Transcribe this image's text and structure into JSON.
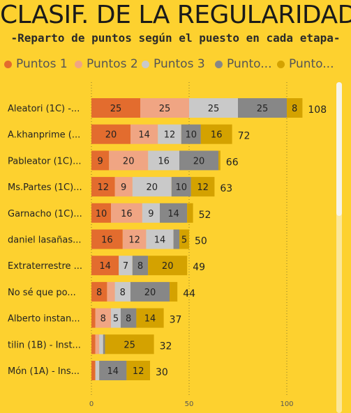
{
  "title": "CLASIF. DE LA REGULARIDAD",
  "subtitle": "-Reparto de puntos según el puesto en cada etapa-",
  "colors": {
    "background": "#fdd12f",
    "gridline": "#8a7a2a"
  },
  "chart_data": {
    "type": "bar",
    "orientation": "horizontal",
    "stacked": true,
    "xlim": [
      0,
      110
    ],
    "x_ticks": [
      0,
      50,
      100
    ],
    "grid": "vertical dotted at 0, 50, 100",
    "legend_position": "top",
    "categories": [
      "Aleatori (1C) -...",
      "A.khanprime (...",
      "Pableator (1C)...",
      "Ms.Partes (1C)...",
      "Garnacho (1C)...",
      "daniel lasañas...",
      "Extraterrestre ...",
      "No sé que po...",
      "Alberto instan...",
      "tilin (1B) - Inst...",
      "Món (1A) - Ins..."
    ],
    "series": [
      {
        "name": "Puntos 1",
        "color": "#e36c2e",
        "values": [
          25,
          20,
          9,
          12,
          10,
          16,
          14,
          8,
          2,
          2,
          2
        ]
      },
      {
        "name": "Puntos 2",
        "color": "#f0a583",
        "values": [
          25,
          14,
          20,
          9,
          16,
          12,
          0,
          4,
          8,
          2,
          0
        ]
      },
      {
        "name": "Puntos 3",
        "color": "#c9c9c9",
        "values": [
          25,
          12,
          16,
          20,
          9,
          14,
          7,
          8,
          5,
          2,
          2
        ]
      },
      {
        "name": "Punto...",
        "color": "#878787",
        "values": [
          25,
          10,
          20,
          10,
          14,
          3,
          8,
          20,
          8,
          1,
          14
        ]
      },
      {
        "name": "Punto...",
        "color": "#d4a200",
        "values": [
          8,
          16,
          1,
          12,
          3,
          5,
          20,
          4,
          14,
          25,
          12
        ]
      }
    ],
    "segment_labels": [
      [
        "25",
        "25",
        "25",
        "25",
        "8"
      ],
      [
        "20",
        "14",
        "12",
        "10",
        "16"
      ],
      [
        "9",
        "20",
        "16",
        "20",
        ""
      ],
      [
        "12",
        "9",
        "20",
        "10",
        "12"
      ],
      [
        "10",
        "16",
        "9",
        "14",
        ""
      ],
      [
        "16",
        "12",
        "14",
        "",
        "5"
      ],
      [
        "14",
        "",
        "7",
        "8",
        "20"
      ],
      [
        "8",
        "",
        "8",
        "20",
        ""
      ],
      [
        "",
        "8",
        "5",
        "8",
        "14"
      ],
      [
        "",
        "",
        "",
        "",
        "25"
      ],
      [
        "",
        "",
        "",
        "14",
        "12"
      ]
    ],
    "totals": [
      108,
      72,
      66,
      63,
      52,
      50,
      49,
      44,
      37,
      32,
      30
    ]
  }
}
